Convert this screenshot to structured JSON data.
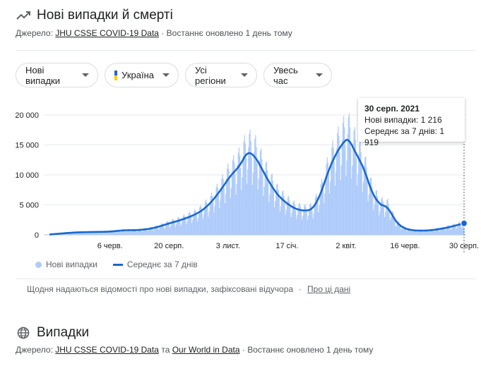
{
  "section1": {
    "title": "Нові випадки й смерті",
    "source_prefix": "Джерело:",
    "source_link": "JHU CSSE COVID-19 Data",
    "updated": "· Востаннє оновлено 1 день тому",
    "icon": "trending-up-icon"
  },
  "filters": {
    "metric": "Нові випадки",
    "country": "Україна",
    "region": "Усі регіони",
    "period": "Увесь час"
  },
  "colors": {
    "bar": "#aecbfa",
    "line": "#1967d2",
    "flag_top": "#2f5fd7",
    "flag_bottom": "#f7d117"
  },
  "tooltip": {
    "title": "30 серп. 2021",
    "line1": "Нові випадки: 1 216",
    "line2": "Середнє за 7 днів: 1 919"
  },
  "legend": {
    "bars": "Нові випадки",
    "line": "Середнє за 7 днів"
  },
  "note": {
    "text": "Щодня надаються відомості про нові випадки, зафіксовані відучора",
    "sep": "·",
    "link": "Про ці дані"
  },
  "section2": {
    "title": "Випадки",
    "source_prefix": "Джерело:",
    "source_link1": "JHU CSSE COVID-19 Data",
    "source_and": "та",
    "source_link2": "Our World in Data",
    "updated": "· Востаннє оновлено 1 день тому",
    "icon": "globe-icon"
  },
  "chart_data": {
    "type": "bar",
    "x_start": "2020-03-21",
    "x_end": "2021-08-30",
    "ylim": [
      0,
      20000
    ],
    "y_ticks": [
      {
        "value": 20000,
        "label": "20 000"
      },
      {
        "value": 15000,
        "label": "15 000"
      },
      {
        "value": 10000,
        "label": "10 000"
      },
      {
        "value": 5000,
        "label": "5 000"
      },
      {
        "value": 0,
        "label": "0"
      }
    ],
    "x_ticks": [
      {
        "date": "2020-06-06",
        "label": "6 черв."
      },
      {
        "date": "2020-08-20",
        "label": "20 серп."
      },
      {
        "date": "2020-11-03",
        "label": "3 лист."
      },
      {
        "date": "2021-01-17",
        "label": "17 січ."
      },
      {
        "date": "2021-04-02",
        "label": "2 квіт."
      },
      {
        "date": "2021-06-16",
        "label": "16 черв."
      },
      {
        "date": "2021-08-30",
        "label": "30 серп."
      }
    ],
    "series": [
      {
        "name": "Середнє за 7 днів",
        "points": [
          [
            "2020-03-21",
            50
          ],
          [
            "2020-04-15",
            350
          ],
          [
            "2020-05-10",
            480
          ],
          [
            "2020-06-06",
            500
          ],
          [
            "2020-06-25",
            800
          ],
          [
            "2020-07-10",
            750
          ],
          [
            "2020-07-30",
            1050
          ],
          [
            "2020-08-20",
            1900
          ],
          [
            "2020-09-05",
            2500
          ],
          [
            "2020-09-25",
            3500
          ],
          [
            "2020-10-10",
            5000
          ],
          [
            "2020-10-25",
            7500
          ],
          [
            "2020-11-05",
            9700
          ],
          [
            "2020-11-18",
            11500
          ],
          [
            "2020-11-28",
            14000
          ],
          [
            "2020-12-08",
            13000
          ],
          [
            "2020-12-18",
            10500
          ],
          [
            "2020-12-28",
            8200
          ],
          [
            "2021-01-06",
            6500
          ],
          [
            "2021-01-17",
            5200
          ],
          [
            "2021-01-28",
            4300
          ],
          [
            "2021-02-08",
            4000
          ],
          [
            "2021-02-18",
            4200
          ],
          [
            "2021-02-28",
            6500
          ],
          [
            "2021-03-10",
            10500
          ],
          [
            "2021-03-20",
            13500
          ],
          [
            "2021-03-30",
            15500
          ],
          [
            "2021-04-05",
            16100
          ],
          [
            "2021-04-15",
            13500
          ],
          [
            "2021-04-25",
            11000
          ],
          [
            "2021-05-05",
            7000
          ],
          [
            "2021-05-15",
            5000
          ],
          [
            "2021-05-25",
            4700
          ],
          [
            "2021-06-05",
            2000
          ],
          [
            "2021-06-16",
            1000
          ],
          [
            "2021-06-28",
            700
          ],
          [
            "2021-07-15",
            700
          ],
          [
            "2021-08-01",
            1000
          ],
          [
            "2021-08-15",
            1400
          ],
          [
            "2021-08-30",
            1919
          ]
        ]
      }
    ],
    "bars_series_name": "Нові випадки",
    "bars_end_value": 1216
  }
}
